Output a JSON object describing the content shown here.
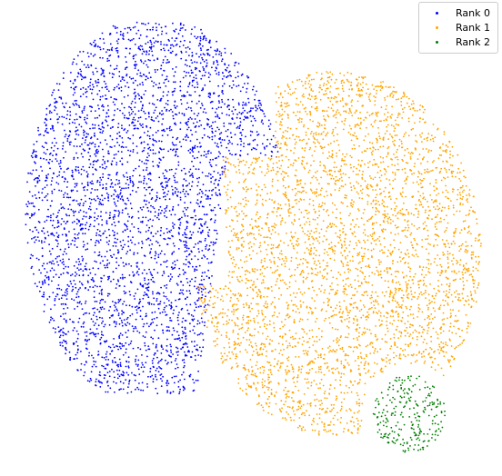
{
  "chart_data": {
    "type": "scatter",
    "title": "",
    "xlabel": "",
    "ylabel": "",
    "axes_visible": false,
    "grid": false,
    "legend_position": "top-right",
    "series": [
      {
        "name": "Rank 0",
        "color": "#0000ff",
        "region": "large cluster on the left",
        "x_center": 0.3,
        "y_center": 0.43,
        "x_spread": 0.18,
        "y_spread": 0.27,
        "approx_points": 6500
      },
      {
        "name": "Rank 1",
        "color": "#ffa500",
        "region": "large cluster in the center-right",
        "x_center": 0.68,
        "y_center": 0.53,
        "x_spread": 0.22,
        "y_spread": 0.28,
        "approx_points": 7000
      },
      {
        "name": "Rank 2",
        "color": "#008000",
        "region": "small cluster at the bottom right",
        "x_center": 0.83,
        "y_center": 0.88,
        "x_spread": 0.07,
        "y_spread": 0.08,
        "approx_points": 450
      }
    ]
  }
}
